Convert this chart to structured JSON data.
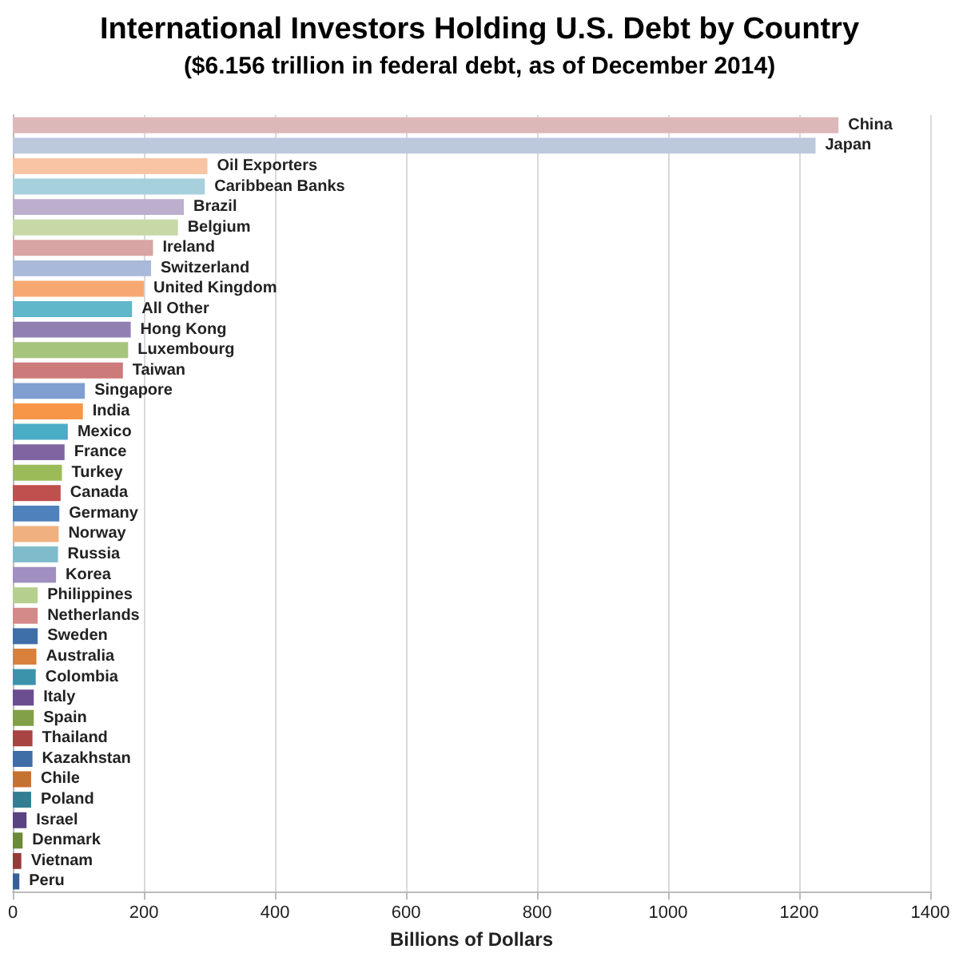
{
  "chart_data": {
    "type": "bar",
    "orientation": "horizontal",
    "title": "International Investors Holding U.S. Debt by Country",
    "subtitle": "($6.156 trillion in federal debt, as of December 2014)",
    "xlabel": "Billions of Dollars",
    "categories": [
      "China",
      "Japan",
      "Oil Exporters",
      "Caribbean Banks",
      "Brazil",
      "Belgium",
      "Ireland",
      "Switzerland",
      "United Kingdom",
      "All Other",
      "Hong Kong",
      "Luxembourg",
      "Taiwan",
      "Singapore",
      "India",
      "Mexico",
      "France",
      "Turkey",
      "Canada",
      "Germany",
      "Norway",
      "Russia",
      "Korea",
      "Philippines",
      "Netherlands",
      "Sweden",
      "Australia",
      "Colombia",
      "Italy",
      "Spain",
      "Thailand",
      "Kazakhstan",
      "Chile",
      "Poland",
      "Israel",
      "Denmark",
      "Vietnam",
      "Peru"
    ],
    "values": [
      1260,
      1225,
      297,
      293,
      261,
      252,
      214,
      211,
      200,
      182,
      180,
      176,
      168,
      110,
      107,
      84,
      79,
      75,
      73,
      71,
      70,
      69,
      66,
      38,
      38,
      38,
      36,
      35,
      32,
      32,
      30,
      30,
      28,
      28,
      21,
      15,
      13,
      10
    ],
    "colors": [
      "#ddb8b8",
      "#bcc8dc",
      "#f9c4a4",
      "#a6d0dc",
      "#bcaecd",
      "#c6d9a6",
      "#d9a4a4",
      "#a9b9d9",
      "#f7a870",
      "#5fb7c9",
      "#9080b2",
      "#a6c47c",
      "#cc7a7a",
      "#7f9fd0",
      "#f79646",
      "#4bacc6",
      "#8064a2",
      "#9bbb59",
      "#c0504d",
      "#4f81bd",
      "#f0b080",
      "#7fbccb",
      "#a08fc0",
      "#b5cf8f",
      "#d38a88",
      "#3e6fa8",
      "#d9803a",
      "#3a93ab",
      "#6a4e90",
      "#82a048",
      "#a84442",
      "#3f6da6",
      "#c77130",
      "#327f94",
      "#5b4280",
      "#6b8a3a",
      "#963a38",
      "#37609a"
    ],
    "xlim": [
      0,
      1400
    ],
    "xticks": [
      0,
      200,
      400,
      600,
      800,
      1000,
      1200,
      1400
    ],
    "grid": "x",
    "tick_labels": "x"
  }
}
